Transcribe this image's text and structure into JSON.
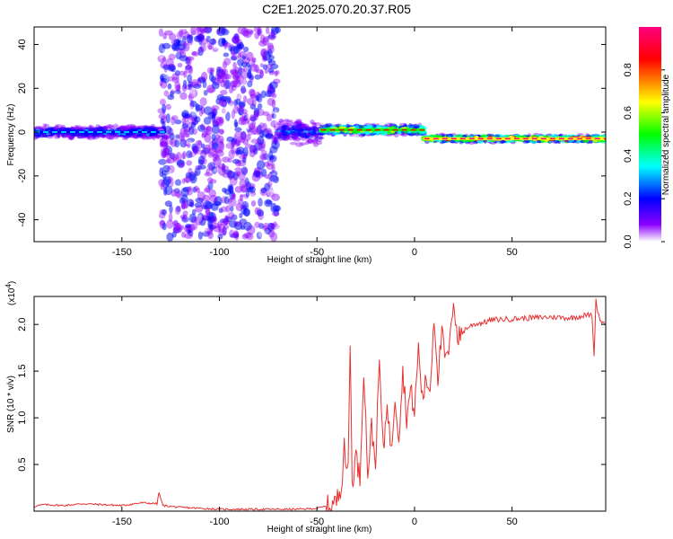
{
  "title": "C2E1.2025.070.20.37.R05",
  "chart_data": [
    {
      "type": "heatmap",
      "xlabel": "Height of straight line (km)",
      "ylabel": "Frequency (Hz)",
      "xlim": [
        -195,
        98
      ],
      "ylim": [
        -50,
        48
      ],
      "xticks": [
        "-150",
        "-100",
        "-50",
        "0",
        "50"
      ],
      "yticks": [
        "40",
        "20",
        "0",
        "-20",
        "-40"
      ],
      "colorbar": {
        "label": "Normalized spectral amplitude",
        "range": [
          0,
          1
        ],
        "ticks": [
          "0.0",
          "0.2",
          "0.4",
          "0.6",
          "0.8"
        ],
        "colors": [
          "#ffffff",
          "#8c00ff",
          "#0000ff",
          "#00ffff",
          "#00ff00",
          "#ffff00",
          "#ff0000",
          "#ff0080"
        ]
      },
      "segments": [
        {
          "x": [
            -195,
            -128
          ],
          "center_hz": 0,
          "spread_hz": 4,
          "peak": 0.45
        },
        {
          "x": [
            -130,
            -70
          ],
          "center_hz": 0,
          "spread_hz": 48,
          "peak": 0.25
        },
        {
          "x": [
            -70,
            -48
          ],
          "center_hz": 0,
          "spread_hz": 8,
          "peak": 0.4
        },
        {
          "x": [
            -48,
            5
          ],
          "center_hz": 1,
          "spread_hz": 3,
          "peak": 0.9
        },
        {
          "x": [
            5,
            98
          ],
          "center_hz": -3,
          "spread_hz": 2,
          "peak": 1.0
        }
      ]
    },
    {
      "type": "line",
      "xlabel": "Height of straight line (km)",
      "ylabel": "SNR (10 * v/v)",
      "exponent_label": "(x10",
      "exponent_sup": "4",
      "exponent_close": ")",
      "xlim": [
        -195,
        98
      ],
      "ylim": [
        0,
        2.3
      ],
      "xticks": [
        "-150",
        "-100",
        "-50",
        "0",
        "50"
      ],
      "yticks": [
        "2.0",
        "1.5",
        "1.0",
        "0.5"
      ],
      "series": [
        {
          "color": "#e83030",
          "points": [
            [
              -195,
              0.05
            ],
            [
              -190,
              0.07
            ],
            [
              -180,
              0.06
            ],
            [
              -170,
              0.08
            ],
            [
              -160,
              0.07
            ],
            [
              -150,
              0.06
            ],
            [
              -140,
              0.09
            ],
            [
              -132,
              0.08
            ],
            [
              -131,
              0.2
            ],
            [
              -129,
              0.06
            ],
            [
              -120,
              0.04
            ],
            [
              -110,
              0.03
            ],
            [
              -100,
              0.02
            ],
            [
              -90,
              0.02
            ],
            [
              -80,
              0.02
            ],
            [
              -70,
              0.02
            ],
            [
              -60,
              0.02
            ],
            [
              -50,
              0.03
            ],
            [
              -44,
              0.06
            ],
            [
              -40,
              0.1
            ],
            [
              -38,
              0.25
            ],
            [
              -37,
              0.4
            ],
            [
              -36,
              0.8
            ],
            [
              -35,
              0.35
            ],
            [
              -34,
              0.5
            ],
            [
              -33,
              1.85
            ],
            [
              -32,
              0.3
            ],
            [
              -30,
              0.6
            ],
            [
              -28,
              0.35
            ],
            [
              -26,
              1.55
            ],
            [
              -24,
              0.4
            ],
            [
              -22,
              0.9
            ],
            [
              -20,
              0.5
            ],
            [
              -18,
              1.6
            ],
            [
              -16,
              0.6
            ],
            [
              -14,
              1.2
            ],
            [
              -12,
              0.6
            ],
            [
              -10,
              1.25
            ],
            [
              -8,
              0.8
            ],
            [
              -6,
              1.5
            ],
            [
              -4,
              1.0
            ],
            [
              -2,
              1.3
            ],
            [
              0,
              1.05
            ],
            [
              2,
              1.75
            ],
            [
              4,
              1.2
            ],
            [
              6,
              1.4
            ],
            [
              8,
              1.3
            ],
            [
              10,
              2.1
            ],
            [
              12,
              1.45
            ],
            [
              14,
              1.9
            ],
            [
              16,
              1.6
            ],
            [
              18,
              1.75
            ],
            [
              20,
              2.3
            ],
            [
              22,
              1.85
            ],
            [
              24,
              1.9
            ],
            [
              26,
              1.95
            ],
            [
              30,
              2.0
            ],
            [
              35,
              2.02
            ],
            [
              40,
              2.05
            ],
            [
              50,
              2.06
            ],
            [
              60,
              2.07
            ],
            [
              70,
              2.08
            ],
            [
              80,
              2.07
            ],
            [
              88,
              2.1
            ],
            [
              91,
              2.1
            ],
            [
              92,
              1.65
            ],
            [
              93,
              2.25
            ],
            [
              95,
              2.05
            ],
            [
              98,
              2.0
            ]
          ]
        }
      ]
    }
  ]
}
